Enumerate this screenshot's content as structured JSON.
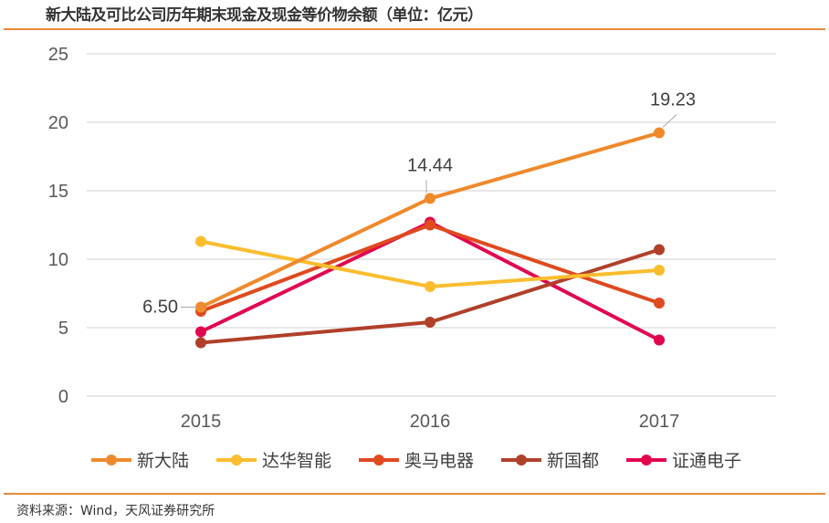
{
  "title": "新大陆及可比公司历年期末现金及现金等价物余额（单位：亿元）",
  "source": "资料来源：Wind，天风证券研究所",
  "chart_data": {
    "type": "line",
    "title": "新大陆及可比公司历年期末现金及现金等价物余额（单位：亿元）",
    "categories": [
      "2015",
      "2016",
      "2017"
    ],
    "ylim": [
      0,
      25
    ],
    "yticks": [
      0,
      5,
      10,
      15,
      20,
      25
    ],
    "grid": true,
    "legend": "bottom",
    "series": [
      {
        "name": "新大陆",
        "color": "#ef8a2c",
        "values": [
          6.5,
          14.44,
          19.23
        ],
        "labels": [
          "6.50",
          "14.44",
          "19.23"
        ]
      },
      {
        "name": "达华智能",
        "color": "#fbbd2e",
        "values": [
          11.3,
          8.0,
          9.2
        ]
      },
      {
        "name": "奥马电器",
        "color": "#df4a1f",
        "values": [
          6.2,
          12.5,
          6.8
        ]
      },
      {
        "name": "新国都",
        "color": "#b0402a",
        "values": [
          3.9,
          5.4,
          10.7
        ]
      },
      {
        "name": "证通电子",
        "color": "#e2064f",
        "values": [
          4.7,
          12.7,
          4.1
        ]
      }
    ]
  }
}
